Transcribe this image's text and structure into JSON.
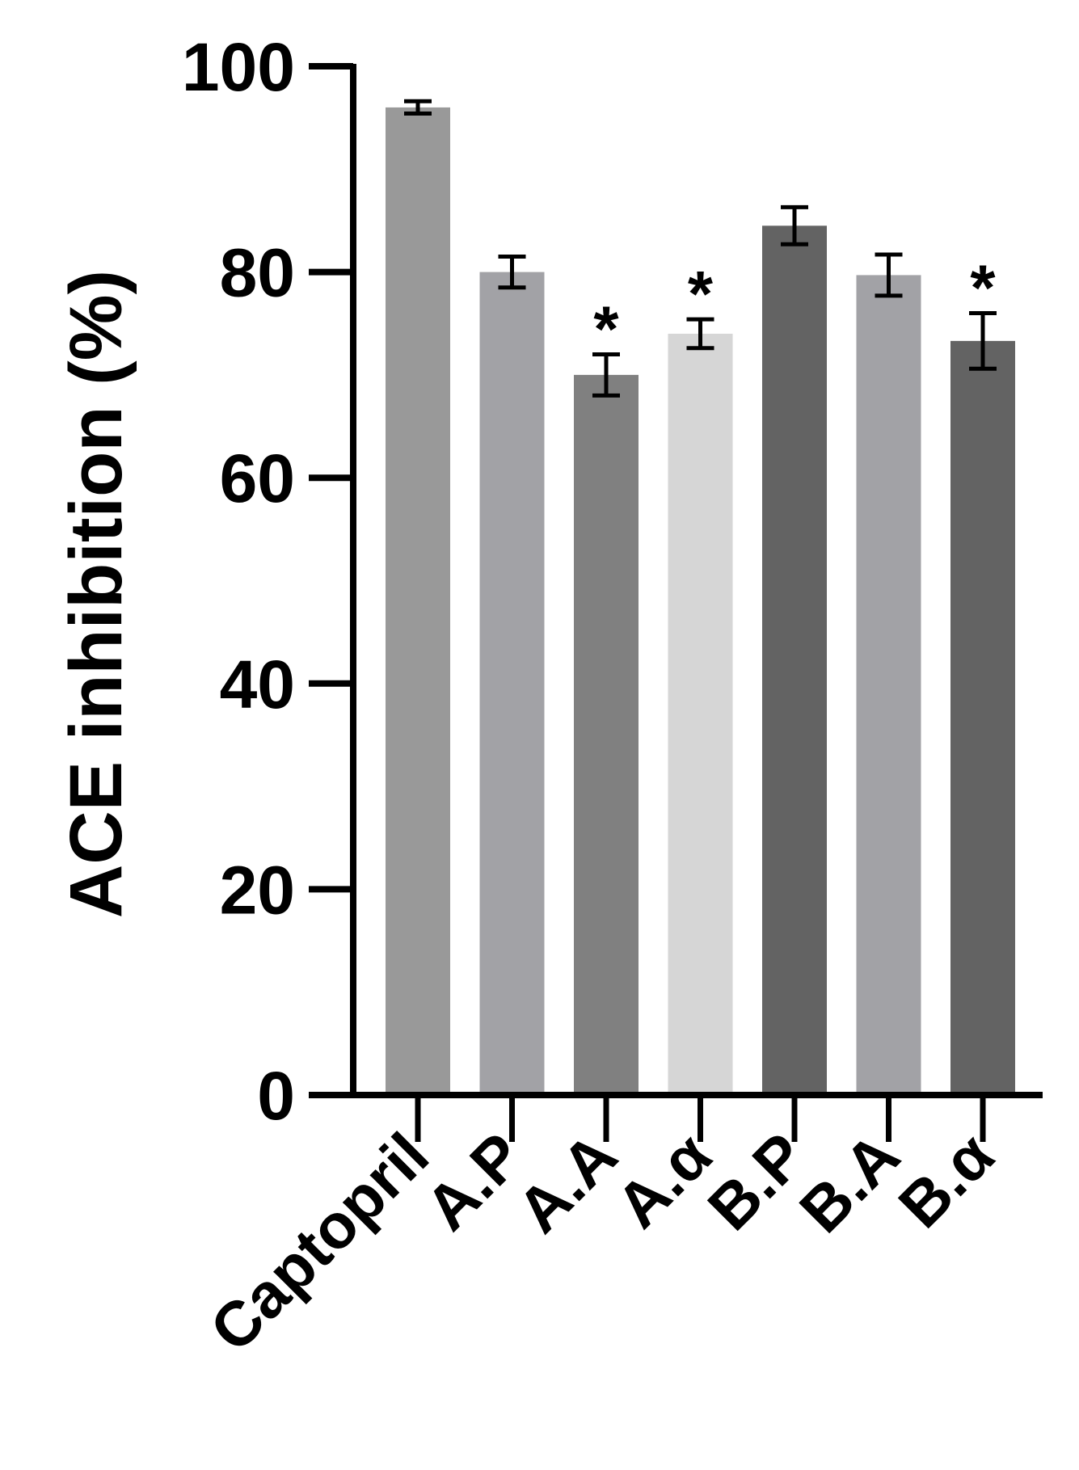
{
  "chart_data": {
    "type": "bar",
    "title": "",
    "xlabel": "",
    "ylabel": "ACE inhibition (%)",
    "ylim": [
      0,
      100
    ],
    "yticks": [
      0,
      20,
      40,
      60,
      80,
      100
    ],
    "grid": false,
    "categories": [
      "Captopril",
      "A.P",
      "A.A",
      "A.α",
      "B.P",
      "B.A",
      "B.α"
    ],
    "values": [
      96,
      80,
      70,
      74,
      84.5,
      79.7,
      73.3
    ],
    "errors": [
      0.6,
      1.5,
      2.0,
      1.4,
      1.8,
      2.0,
      2.7
    ],
    "significance": [
      "",
      "",
      "*",
      "*",
      "",
      "",
      "*"
    ],
    "bar_colors": [
      "#999999",
      "#a2a2a6",
      "#808080",
      "#d6d6d6",
      "#636363",
      "#a2a2a6",
      "#636363"
    ]
  }
}
